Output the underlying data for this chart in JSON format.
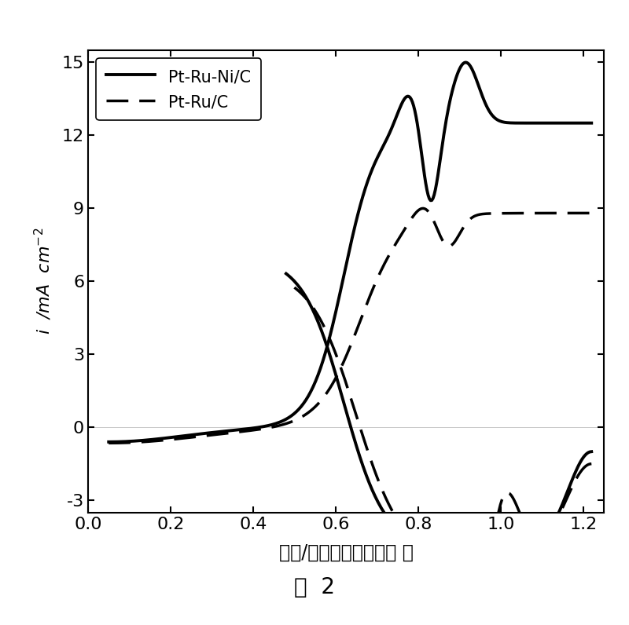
{
  "title": "",
  "xlabel": "电位/伏特（可逆氢电极 ）",
  "ylabel": "i  /mA  cm⁻²",
  "caption": "图  2",
  "xlim": [
    0.0,
    1.25
  ],
  "ylim": [
    -3.5,
    15.5
  ],
  "xticks": [
    0.0,
    0.2,
    0.4,
    0.6,
    0.8,
    1.0,
    1.2
  ],
  "yticks": [
    -3,
    0,
    3,
    6,
    9,
    12,
    15
  ],
  "legend": [
    "Pt-Ru-Ni/C",
    "Pt-Ru/C"
  ],
  "background_color": "#ffffff",
  "line_color": "#000000",
  "linewidth_solid": 2.8,
  "linewidth_dashed": 2.5
}
